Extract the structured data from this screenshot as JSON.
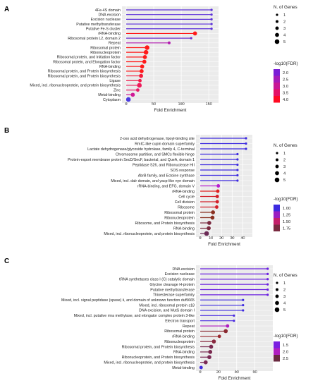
{
  "chart_data": [
    {
      "type": "lollipop",
      "panel_label": "A",
      "title": "",
      "xlabel": "Fold Enrichment",
      "ylabel": "",
      "xlim": [
        0,
        160
      ],
      "xticks": [
        0,
        50,
        100,
        150
      ],
      "grid": true,
      "legend_placement": "right",
      "size_legend": {
        "title": "N. of Genes",
        "values": [
          "1",
          "2",
          "3",
          "4",
          "5"
        ]
      },
      "color_legend": {
        "title": "-log10(FDR)",
        "values": [
          "2.0",
          "2.5",
          "3.0",
          "3.5",
          "4.0"
        ],
        "colors": [
          "#7a1fd6",
          "#a51cb8",
          "#c81896",
          "#e41266",
          "#ff0a22"
        ]
      },
      "categories": [
        "4Fe-4S domain",
        "DNA excision",
        "Excision nuclease",
        "Putative methyltransferase",
        "Putative Fe-S cluster",
        "rRNA-binding",
        "Ribosomal protein L2, domain 2",
        "Repeat",
        "Ribosomal protein",
        "Ribonucleoprotein",
        "Ribosomal protein, and Initiation factor",
        "Ribosomal protein, and Elongation factor",
        "RNA-binding",
        "Ribosomal protein, and Protein biosynthesis",
        "Ribosomal protein, and Protein biosynthesis",
        "Ligase",
        "Mixed, incl. ribonucleoprotein, and protein biosynthesis",
        "Zinc",
        "Metal-binding",
        "Cytoplasm"
      ],
      "fold_enrichment": [
        155,
        155,
        155,
        155,
        155,
        125,
        118,
        78,
        38,
        36,
        34,
        33,
        29,
        28,
        27,
        25,
        24,
        21,
        12,
        4
      ],
      "n_genes": [
        1,
        1,
        1,
        1,
        1,
        4,
        1,
        2,
        5,
        5,
        4,
        4,
        4,
        4,
        4,
        3,
        5,
        3,
        4,
        5
      ],
      "colors": [
        "#5b2fd9",
        "#5b2fd9",
        "#5b2fd9",
        "#5b2fd9",
        "#5b2fd9",
        "#ff1a1a",
        "#6b2fd0",
        "#b21ab0",
        "#ff1a1a",
        "#ff1a1a",
        "#ff1a1a",
        "#ff1a1a",
        "#ff1a1a",
        "#ff1a1a",
        "#f41a3a",
        "#f11a4a",
        "#ee1a5a",
        "#e81a6a",
        "#d01a96",
        "#4a3ae0"
      ]
    },
    {
      "type": "lollipop",
      "panel_label": "B",
      "title": "",
      "xlabel": "Fold Enrichment",
      "ylabel": "",
      "xlim": [
        0,
        45
      ],
      "xticks": [
        0,
        10,
        20,
        30,
        40
      ],
      "grid": true,
      "legend_placement": "right",
      "size_legend": {
        "title": "N. of Genes",
        "values": [
          "1",
          "2",
          "3",
          "4",
          "5"
        ]
      },
      "color_legend": {
        "title": "-log10(FDR)",
        "values": [
          "1.00",
          "1.25",
          "1.50",
          "1.75"
        ],
        "colors": [
          "#3d2be0",
          "#9a1fc0",
          "#c4206a",
          "#7a2a40"
        ]
      },
      "categories": [
        "2-oxo acid dehydrogenase, lipoyl-binding site",
        "RmIC-like cupin domain superfamily",
        "Lactate dehydrogenase/glycoside hydrolase, family 4, C-terminal",
        "Chromosome partition, and SMCs flexible hinge",
        "Protein-export membrane protein SecD/SecF, bacterial, and QueA, domain 1",
        "Peptidase S26, and Ribonuclease HII",
        "SOS response",
        "AbrB family, and Ectoine synthase",
        "Mixed, incl. dalr domain, and yacp-like nyn domain",
        "rRNA-binding, and EFG, domain V",
        "rRNA-binding",
        "Cell cycle",
        "Cell division",
        "Ribosome",
        "Ribosomal protein",
        "Ribonucleoprotein",
        "Ribosome, and Protein biosynthesis",
        "RNA-binding",
        "Mixed, incl. ribonucleoprotein, and protein biosynthesis"
      ],
      "fold_enrichment": [
        43,
        43,
        43,
        35,
        35,
        35,
        35,
        35,
        35,
        17,
        16.5,
        16,
        16,
        15.5,
        12,
        11.5,
        8.5,
        8,
        6
      ],
      "n_genes": [
        1,
        1,
        1,
        1,
        1,
        1,
        1,
        1,
        1,
        3,
        3,
        3,
        3,
        3,
        4,
        4,
        4,
        4,
        5
      ],
      "colors": [
        "#3d2be0",
        "#3d2be0",
        "#3d2be0",
        "#3d2be0",
        "#3d2be0",
        "#3d2be0",
        "#3d2be0",
        "#3d2be0",
        "#3d2be0",
        "#b81fd0",
        "#e02020",
        "#d4202a",
        "#d4202a",
        "#d4202a",
        "#8a3020",
        "#8a3020",
        "#7a2a40",
        "#7a2a40",
        "#6a2a55"
      ]
    },
    {
      "type": "lollipop",
      "panel_label": "C",
      "title": "",
      "xlabel": "Fold Enrichment",
      "ylabel": "",
      "xlim": [
        0,
        75
      ],
      "xticks": [
        0,
        20,
        40,
        60
      ],
      "grid": true,
      "legend_placement": "right",
      "size_legend": {
        "title": "N. of Genes",
        "values": [
          "1",
          "2",
          "3",
          "4",
          "5"
        ]
      },
      "color_legend": {
        "title": "-log10(FDR)",
        "values": [
          "1.5",
          "2.0",
          "2.5"
        ],
        "colors": [
          "#7a1fe0",
          "#b01fc0",
          "#6a2a40"
        ]
      },
      "categories": [
        "DNA excision",
        "Excision nuclease",
        "tRNA synthetases class I (C) catalytic domain",
        "Glycine cleavage H-protein",
        "Putative methyltransferase",
        "Thioesterase superfamily",
        "Mixed, incl. signal peptidase (spase) ii, and domain of unknown function duf5665",
        "Mixed, incl. ribosomal protein s18",
        "DNA excision, and MutS domain I",
        "Mixed, incl. putative rrna methylase, and elongator complex protein 3-like",
        "Electron transport",
        "Repeat",
        "Ribosomal protein",
        "rRNA-binding",
        "Ribonucleoprotein",
        "Ribosomal protein, and Protein biosynthesis",
        "RNA-binding",
        "Ribonucleoprotein, and Protein biosynthesis",
        "Mixed, incl. ribonucleoprotein, and protein biosynthesis",
        "Metal-binding"
      ],
      "fold_enrichment": [
        74,
        74,
        74,
        74,
        74,
        74,
        47,
        47,
        47,
        37,
        37,
        30,
        28,
        21,
        15,
        12,
        11,
        10,
        6,
        1
      ],
      "n_genes": [
        1,
        1,
        1,
        1,
        1,
        1,
        1,
        1,
        1,
        1,
        1,
        3,
        4,
        3,
        4,
        4,
        4,
        4,
        4,
        3
      ],
      "colors": [
        "#6a1fe0",
        "#6a1fe0",
        "#6a1fe0",
        "#6a1fe0",
        "#6a1fe0",
        "#6a1fe0",
        "#3d2be0",
        "#3d2be0",
        "#3d2be0",
        "#4a2be0",
        "#4a2be0",
        "#b01fc0",
        "#8a2a30",
        "#9a2a30",
        "#8a2a40",
        "#7a2a50",
        "#7a2a50",
        "#7a2a55",
        "#7a2a55",
        "#3d2be0"
      ]
    }
  ]
}
